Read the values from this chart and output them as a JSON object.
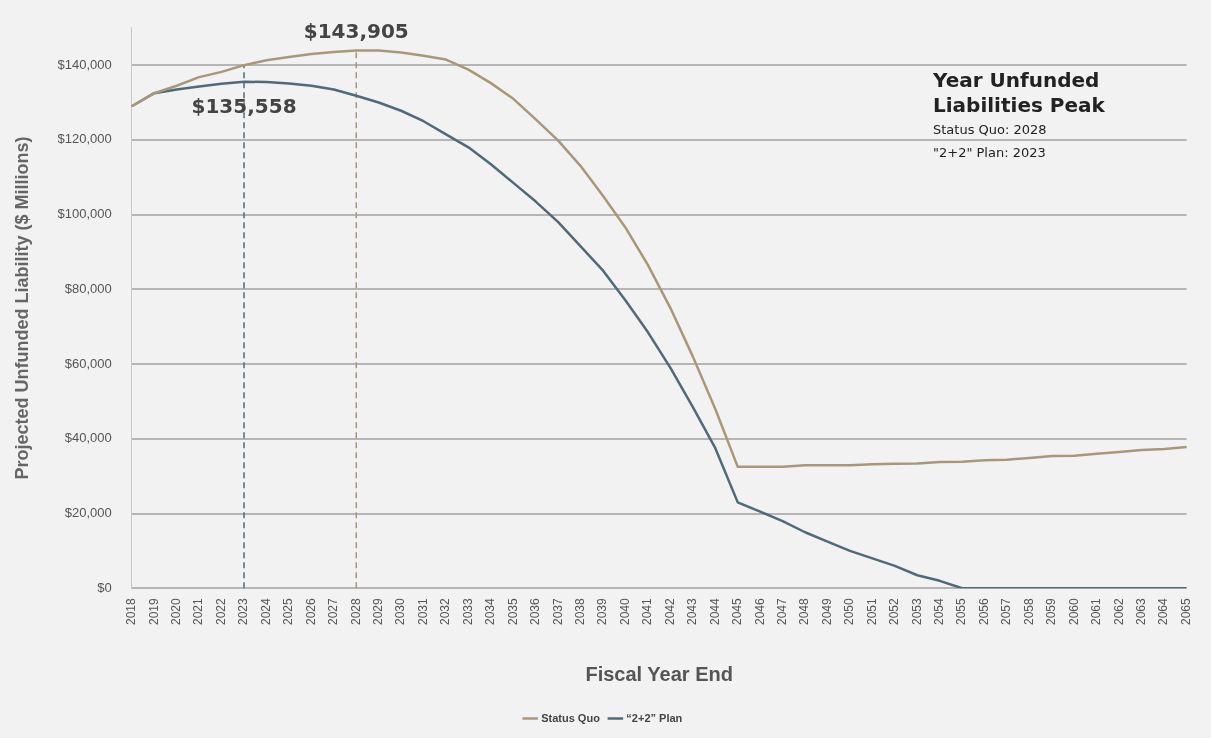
{
  "chart_data": {
    "type": "line",
    "xlabel": "Fiscal Year End",
    "ylabel": "Projected Unfunded Liability ($ Millions)",
    "categories": [
      "2018",
      "2019",
      "2020",
      "2021",
      "2022",
      "2023",
      "2024",
      "2025",
      "2026",
      "2027",
      "2028",
      "2029",
      "2030",
      "2031",
      "2032",
      "2033",
      "2034",
      "2035",
      "2036",
      "2037",
      "2038",
      "2039",
      "2040",
      "2041",
      "2042",
      "2043",
      "2044",
      "2045",
      "2046",
      "2047",
      "2048",
      "2049",
      "2050",
      "2051",
      "2052",
      "2053",
      "2054",
      "2055",
      "2056",
      "2057",
      "2058",
      "2059",
      "2060",
      "2061",
      "2062",
      "2063",
      "2064",
      "2065"
    ],
    "series": [
      {
        "name": "Status Quo",
        "color": "#a89878",
        "values": [
          129000,
          132500,
          134500,
          136800,
          138200,
          140000,
          141300,
          142200,
          143000,
          143500,
          143905,
          143900,
          143400,
          142500,
          141500,
          138800,
          135200,
          131000,
          125500,
          119800,
          113000,
          105000,
          96500,
          86500,
          75000,
          62000,
          48000,
          32500,
          32500,
          32500,
          32900,
          32900,
          32900,
          33200,
          33300,
          33400,
          33800,
          33900,
          34300,
          34400,
          34900,
          35400,
          35500,
          36000,
          36500,
          37000,
          37300,
          37800
        ]
      },
      {
        "name": "“2+2” Plan",
        "color": "#4f6b78",
        "values": [
          129000,
          132500,
          133500,
          134300,
          135000,
          135558,
          135500,
          135100,
          134500,
          133500,
          131800,
          130000,
          127800,
          125000,
          121500,
          118000,
          113500,
          108500,
          103500,
          98000,
          91500,
          85000,
          77000,
          68500,
          59000,
          48500,
          37500,
          23000,
          20500,
          18000,
          15000,
          12500,
          10000,
          8000,
          6000,
          3500,
          2000,
          0,
          0,
          0,
          0,
          0,
          0,
          0,
          0,
          0,
          0,
          0
        ]
      }
    ],
    "ylim": [
      0,
      150000
    ],
    "yticks": [
      {
        "value": 0,
        "label": "$0"
      },
      {
        "value": 20000,
        "label": "$20,000"
      },
      {
        "value": 40000,
        "label": "$40,000"
      },
      {
        "value": 60000,
        "label": "$60,000"
      },
      {
        "value": 80000,
        "label": "$80,000"
      },
      {
        "value": 100000,
        "label": "$100,000"
      },
      {
        "value": 120000,
        "label": "$120,000"
      },
      {
        "value": 140000,
        "label": "$140,000"
      }
    ],
    "grid": "y",
    "legend": "bottom",
    "marker": "none",
    "line_style": "solid",
    "ref_lines": [
      {
        "axis": "x",
        "value": "2023",
        "color": "#4f6b78",
        "line_style": "dashed"
      },
      {
        "axis": "x",
        "value": "2028",
        "color": "#a89878",
        "line_style": "dashed"
      }
    ],
    "annotations": [
      {
        "text": "$143,905",
        "x": "2028",
        "y": 143905
      },
      {
        "text": "$135,558",
        "x": "2023",
        "y": 135558
      },
      "Year Unfunded Liabilities Peak",
      "Status Quo: 2028",
      "\"2+2\" Plan: 2023"
    ]
  }
}
